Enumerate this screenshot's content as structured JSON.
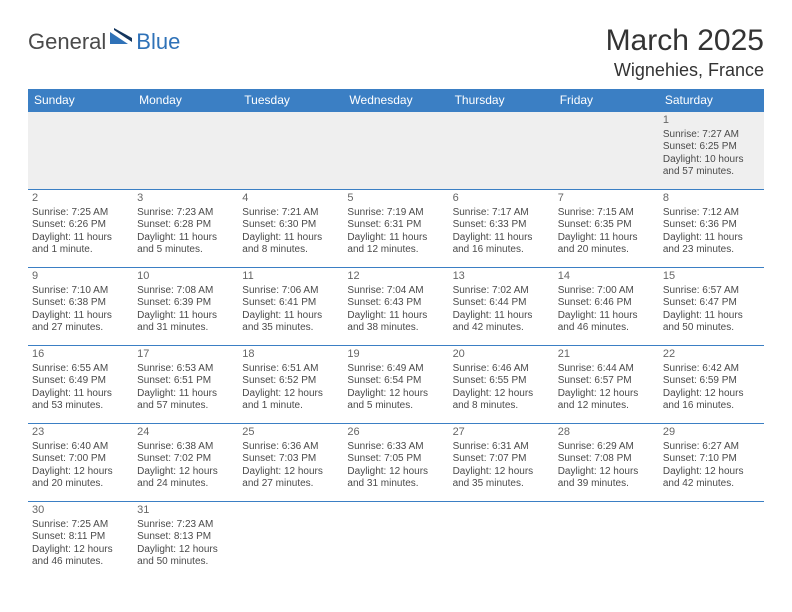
{
  "logo": {
    "text_dark": "General",
    "text_blue": "Blue"
  },
  "header": {
    "month": "March 2025",
    "location": "Wignehies, France"
  },
  "colors": {
    "header_bg": "#3b7fc4",
    "header_text": "#ffffff",
    "row_sep": "#3b7fc4",
    "week1_bg": "#efefef",
    "body_text": "#4a4a4a",
    "logo_dark": "#4a4a4a",
    "logo_blue": "#2f72b8"
  },
  "weekdays": [
    "Sunday",
    "Monday",
    "Tuesday",
    "Wednesday",
    "Thursday",
    "Friday",
    "Saturday"
  ],
  "weeks": [
    [
      null,
      null,
      null,
      null,
      null,
      null,
      {
        "n": "1",
        "sunrise": "Sunrise: 7:27 AM",
        "sunset": "Sunset: 6:25 PM",
        "daylight": "Daylight: 10 hours and 57 minutes."
      }
    ],
    [
      {
        "n": "2",
        "sunrise": "Sunrise: 7:25 AM",
        "sunset": "Sunset: 6:26 PM",
        "daylight": "Daylight: 11 hours and 1 minute."
      },
      {
        "n": "3",
        "sunrise": "Sunrise: 7:23 AM",
        "sunset": "Sunset: 6:28 PM",
        "daylight": "Daylight: 11 hours and 5 minutes."
      },
      {
        "n": "4",
        "sunrise": "Sunrise: 7:21 AM",
        "sunset": "Sunset: 6:30 PM",
        "daylight": "Daylight: 11 hours and 8 minutes."
      },
      {
        "n": "5",
        "sunrise": "Sunrise: 7:19 AM",
        "sunset": "Sunset: 6:31 PM",
        "daylight": "Daylight: 11 hours and 12 minutes."
      },
      {
        "n": "6",
        "sunrise": "Sunrise: 7:17 AM",
        "sunset": "Sunset: 6:33 PM",
        "daylight": "Daylight: 11 hours and 16 minutes."
      },
      {
        "n": "7",
        "sunrise": "Sunrise: 7:15 AM",
        "sunset": "Sunset: 6:35 PM",
        "daylight": "Daylight: 11 hours and 20 minutes."
      },
      {
        "n": "8",
        "sunrise": "Sunrise: 7:12 AM",
        "sunset": "Sunset: 6:36 PM",
        "daylight": "Daylight: 11 hours and 23 minutes."
      }
    ],
    [
      {
        "n": "9",
        "sunrise": "Sunrise: 7:10 AM",
        "sunset": "Sunset: 6:38 PM",
        "daylight": "Daylight: 11 hours and 27 minutes."
      },
      {
        "n": "10",
        "sunrise": "Sunrise: 7:08 AM",
        "sunset": "Sunset: 6:39 PM",
        "daylight": "Daylight: 11 hours and 31 minutes."
      },
      {
        "n": "11",
        "sunrise": "Sunrise: 7:06 AM",
        "sunset": "Sunset: 6:41 PM",
        "daylight": "Daylight: 11 hours and 35 minutes."
      },
      {
        "n": "12",
        "sunrise": "Sunrise: 7:04 AM",
        "sunset": "Sunset: 6:43 PM",
        "daylight": "Daylight: 11 hours and 38 minutes."
      },
      {
        "n": "13",
        "sunrise": "Sunrise: 7:02 AM",
        "sunset": "Sunset: 6:44 PM",
        "daylight": "Daylight: 11 hours and 42 minutes."
      },
      {
        "n": "14",
        "sunrise": "Sunrise: 7:00 AM",
        "sunset": "Sunset: 6:46 PM",
        "daylight": "Daylight: 11 hours and 46 minutes."
      },
      {
        "n": "15",
        "sunrise": "Sunrise: 6:57 AM",
        "sunset": "Sunset: 6:47 PM",
        "daylight": "Daylight: 11 hours and 50 minutes."
      }
    ],
    [
      {
        "n": "16",
        "sunrise": "Sunrise: 6:55 AM",
        "sunset": "Sunset: 6:49 PM",
        "daylight": "Daylight: 11 hours and 53 minutes."
      },
      {
        "n": "17",
        "sunrise": "Sunrise: 6:53 AM",
        "sunset": "Sunset: 6:51 PM",
        "daylight": "Daylight: 11 hours and 57 minutes."
      },
      {
        "n": "18",
        "sunrise": "Sunrise: 6:51 AM",
        "sunset": "Sunset: 6:52 PM",
        "daylight": "Daylight: 12 hours and 1 minute."
      },
      {
        "n": "19",
        "sunrise": "Sunrise: 6:49 AM",
        "sunset": "Sunset: 6:54 PM",
        "daylight": "Daylight: 12 hours and 5 minutes."
      },
      {
        "n": "20",
        "sunrise": "Sunrise: 6:46 AM",
        "sunset": "Sunset: 6:55 PM",
        "daylight": "Daylight: 12 hours and 8 minutes."
      },
      {
        "n": "21",
        "sunrise": "Sunrise: 6:44 AM",
        "sunset": "Sunset: 6:57 PM",
        "daylight": "Daylight: 12 hours and 12 minutes."
      },
      {
        "n": "22",
        "sunrise": "Sunrise: 6:42 AM",
        "sunset": "Sunset: 6:59 PM",
        "daylight": "Daylight: 12 hours and 16 minutes."
      }
    ],
    [
      {
        "n": "23",
        "sunrise": "Sunrise: 6:40 AM",
        "sunset": "Sunset: 7:00 PM",
        "daylight": "Daylight: 12 hours and 20 minutes."
      },
      {
        "n": "24",
        "sunrise": "Sunrise: 6:38 AM",
        "sunset": "Sunset: 7:02 PM",
        "daylight": "Daylight: 12 hours and 24 minutes."
      },
      {
        "n": "25",
        "sunrise": "Sunrise: 6:36 AM",
        "sunset": "Sunset: 7:03 PM",
        "daylight": "Daylight: 12 hours and 27 minutes."
      },
      {
        "n": "26",
        "sunrise": "Sunrise: 6:33 AM",
        "sunset": "Sunset: 7:05 PM",
        "daylight": "Daylight: 12 hours and 31 minutes."
      },
      {
        "n": "27",
        "sunrise": "Sunrise: 6:31 AM",
        "sunset": "Sunset: 7:07 PM",
        "daylight": "Daylight: 12 hours and 35 minutes."
      },
      {
        "n": "28",
        "sunrise": "Sunrise: 6:29 AM",
        "sunset": "Sunset: 7:08 PM",
        "daylight": "Daylight: 12 hours and 39 minutes."
      },
      {
        "n": "29",
        "sunrise": "Sunrise: 6:27 AM",
        "sunset": "Sunset: 7:10 PM",
        "daylight": "Daylight: 12 hours and 42 minutes."
      }
    ],
    [
      {
        "n": "30",
        "sunrise": "Sunrise: 7:25 AM",
        "sunset": "Sunset: 8:11 PM",
        "daylight": "Daylight: 12 hours and 46 minutes."
      },
      {
        "n": "31",
        "sunrise": "Sunrise: 7:23 AM",
        "sunset": "Sunset: 8:13 PM",
        "daylight": "Daylight: 12 hours and 50 minutes."
      },
      null,
      null,
      null,
      null,
      null
    ]
  ]
}
